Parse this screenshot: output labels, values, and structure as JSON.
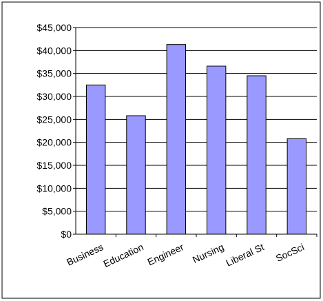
{
  "chart_data": {
    "type": "bar",
    "categories": [
      "Business",
      "Education",
      "Engineer",
      "Nursing",
      "Liberal St",
      "SocSci"
    ],
    "series": [
      {
        "values": [
          32500,
          25800,
          41300,
          36600,
          34500,
          20800
        ]
      }
    ],
    "ylim": [
      0,
      45000
    ],
    "yticks": [
      0,
      5000,
      10000,
      15000,
      20000,
      25000,
      30000,
      35000,
      40000,
      45000
    ],
    "ytick_labels": [
      "$0",
      "$5,000",
      "$10,000",
      "$15,000",
      "$20,000",
      "$25,000",
      "$30,000",
      "$35,000",
      "$40,000",
      "$45,000"
    ],
    "grid": true,
    "colors": {
      "bar_fill": "#9999ff",
      "bar_stroke": "#000000",
      "gridline": "#000000"
    }
  }
}
